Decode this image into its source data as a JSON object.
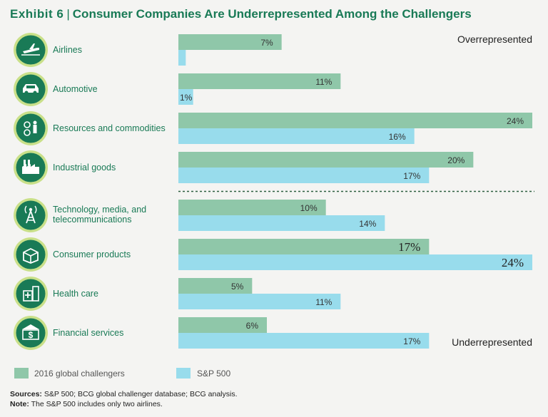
{
  "title": {
    "exhibit": "Exhibit 6",
    "separator": "|",
    "text": "Consumer Companies Are Underrepresented Among the Challengers"
  },
  "colors": {
    "challengers": "#8fc7a9",
    "sp500": "#98dcec",
    "accent": "#197a56",
    "icon_ring": "#c9e089"
  },
  "annotations": {
    "top": "Overrepresented",
    "bottom": "Underrepresented"
  },
  "legend": {
    "challengers": "2016 global challengers",
    "sp500": "S&P 500"
  },
  "sources": {
    "sources_label": "Sources:",
    "sources_text": "S&P 500; BCG global challenger database; BCG analysis.",
    "note_label": "Note:",
    "note_text": "The S&P 500 includes only two airlines."
  },
  "chart_data": {
    "type": "bar",
    "orientation": "horizontal",
    "title": "Consumer Companies Are Underrepresented Among the Challengers",
    "xlim": [
      0,
      24
    ],
    "grid": false,
    "legend_position": "bottom",
    "categories": [
      {
        "name": "Airlines",
        "lines": [
          "Airlines"
        ],
        "icon": "airplane-icon",
        "highlight": false
      },
      {
        "name": "Automotive",
        "lines": [
          "Automotive"
        ],
        "icon": "car-icon",
        "highlight": false
      },
      {
        "name": "Resources and commodities",
        "lines": [
          "Resources and commodities"
        ],
        "icon": "resources-icon",
        "highlight": false
      },
      {
        "name": "Industrial goods",
        "lines": [
          "Industrial goods"
        ],
        "icon": "factory-icon",
        "highlight": false
      },
      {
        "name": "Technology, media, and telecommunications",
        "lines": [
          "Technology, media, and",
          "telecommunications"
        ],
        "icon": "tower-icon",
        "highlight": false
      },
      {
        "name": "Consumer products",
        "lines": [
          "Consumer products"
        ],
        "icon": "box-icon",
        "highlight": true
      },
      {
        "name": "Health care",
        "lines": [
          "Health care"
        ],
        "icon": "hospital-icon",
        "highlight": false
      },
      {
        "name": "Financial services",
        "lines": [
          "Financial services"
        ],
        "icon": "bank-icon",
        "highlight": false
      }
    ],
    "divider_after_index": 3,
    "series": [
      {
        "name": "2016 global challengers",
        "values": [
          7,
          11,
          24,
          20,
          10,
          17,
          5,
          6
        ],
        "labels": [
          "7%",
          "11%",
          "24%",
          "20%",
          "10%",
          "17%",
          "5%",
          "6%"
        ],
        "color": "#8fc7a9"
      },
      {
        "name": "S&P 500",
        "values": [
          0.5,
          1,
          16,
          17,
          14,
          24,
          11,
          17
        ],
        "labels": [
          "",
          "1%",
          "16%",
          "17%",
          "14%",
          "24%",
          "11%",
          "17%"
        ],
        "color": "#98dcec"
      }
    ]
  }
}
